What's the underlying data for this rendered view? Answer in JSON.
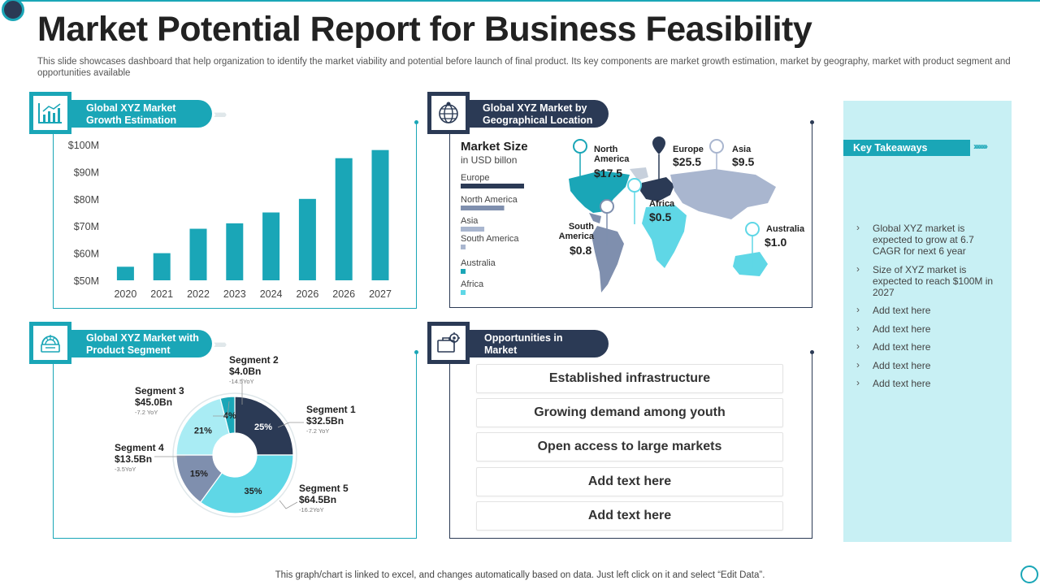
{
  "title": "Market Potential Report for Business Feasibility",
  "subtitle": "This slide showcases dashboard that help organization to identify the market viability and potential before launch of final product. Its key components are market growth estimation, market by geography, market with product segment and opportunities available",
  "footer": "This graph/chart is linked to excel,  and changes automatically based on data. Just left click on it and select “Edit Data”.",
  "colors": {
    "teal": "#1aa6b7",
    "navy": "#2b3a55",
    "light_teal": "#5fd7e6",
    "grey_blue": "#7f8fae",
    "panel_bg": "#c8f0f4"
  },
  "panels": {
    "growth": {
      "label": "Global XYZ Market Growth Estimation",
      "icon": "bar-chart-icon"
    },
    "geo": {
      "label": "Global XYZ Market by Geographical Location",
      "icon": "globe-icon"
    },
    "segment": {
      "label": "Global XYZ Market with Product Segment",
      "icon": "brain-chip-icon"
    },
    "opportunities": {
      "label": "Opportunities in Market",
      "icon": "briefcase-gear-icon"
    }
  },
  "chart_data": [
    {
      "type": "bar",
      "title": "Global XYZ Market Growth Estimation",
      "categories": [
        "2020",
        "2021",
        "2022",
        "2023",
        "2024",
        "2026",
        "2026",
        "2027"
      ],
      "values": [
        55,
        60,
        69,
        71,
        75,
        80,
        95,
        98
      ],
      "ylim": [
        50,
        100
      ],
      "yticks": [
        "$50M",
        "$60M",
        "$70M",
        "$80M",
        "$90M",
        "$100M"
      ],
      "xlabel": "",
      "ylabel": ""
    },
    {
      "type": "bar",
      "orientation": "horizontal",
      "title": "Market Size",
      "subtitle": "in USD billon",
      "categories": [
        "Europe",
        "North America",
        "Asia",
        "South America",
        "Australia",
        "Africa"
      ],
      "values": [
        25.5,
        17.5,
        9.5,
        0.8,
        1.0,
        0.5
      ],
      "map_labels": [
        {
          "region": "North America",
          "value": "$17.5"
        },
        {
          "region": "Europe",
          "value": "$25.5"
        },
        {
          "region": "Asia",
          "value": "$9.5"
        },
        {
          "region": "Africa",
          "value": "$0.5"
        },
        {
          "region": "South America",
          "value": "$0.8"
        },
        {
          "region": "Australia",
          "value": "$1.0"
        }
      ]
    },
    {
      "type": "pie",
      "title": "Global XYZ Market with Product Segment",
      "slices": [
        {
          "name": "Segment 1",
          "value": 25,
          "label": "25%",
          "amount": "$32.5Bn",
          "yoy": "-7.2 YoY",
          "color": "#2b3a55"
        },
        {
          "name": "Segment 5",
          "value": 35,
          "label": "35%",
          "amount": "$64.5Bn",
          "yoy": "-16.2YoY",
          "color": "#5fd7e6"
        },
        {
          "name": "Segment 4",
          "value": 15,
          "label": "15%",
          "amount": "$13.5Bn",
          "yoy": "-3.5YoY",
          "color": "#7f8fae"
        },
        {
          "name": "Segment 3",
          "value": 21,
          "label": "21%",
          "amount": "$45.0Bn",
          "yoy": "-7.2 YoY",
          "color": "#a9ecf4"
        },
        {
          "name": "Segment 2",
          "value": 4,
          "label": "4%",
          "amount": "$4.0Bn",
          "yoy": "-14.5YoY",
          "color": "#1aa6b7"
        }
      ]
    }
  ],
  "opportunities": [
    "Established infrastructure",
    "Growing demand among youth",
    "Open access to large markets",
    "Add text here",
    "Add text here"
  ],
  "takeaways": {
    "title": "Key Takeaways",
    "items": [
      "Global XYZ  market is expected to grow at 6.7 CAGR for next 6 year",
      "Size of XYZ  market is expected to reach $100M in 2027",
      "Add text here",
      "Add text here",
      "Add text here",
      "Add text here",
      "Add text here"
    ]
  }
}
